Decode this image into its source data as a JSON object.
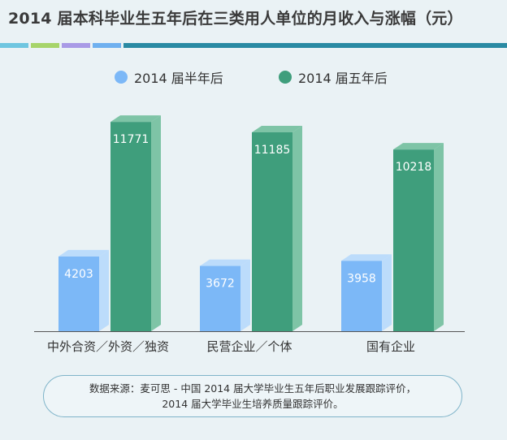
{
  "title": "2014 届本科毕业生五年后在三类用人单位的月收入与涨幅（元）",
  "colors": {
    "series_half": "#7cb8f7",
    "series_half_side": "#bcdcfb",
    "series_five": "#3f9e7c",
    "series_five_side": "#7ec4a6",
    "bar_cyan": "#6fc6e0",
    "bar_green": "#a6d46a",
    "bar_purple": "#a99ae6",
    "bar_blue": "#6fb0ef",
    "bar_teal": "#2a8aa3"
  },
  "chart_data": {
    "type": "bar",
    "categories": [
      "中外合资／外资／独资",
      "民营企业／个体",
      "国有企业"
    ],
    "series": [
      {
        "name": "2014 届半年后",
        "values": [
          4203,
          3672,
          3958
        ]
      },
      {
        "name": "2014 届五年后",
        "values": [
          11771,
          11185,
          10218
        ]
      }
    ],
    "xlabel": "",
    "ylabel": "",
    "ylim": [
      0,
      12600
    ],
    "grid": false,
    "legend": "top-center"
  },
  "source": {
    "line1": "数据来源：麦可思 - 中国 2014 届大学毕业生五年后职业发展跟踪评价，",
    "line2": "2014 届大学毕业生培养质量跟踪评价。"
  }
}
